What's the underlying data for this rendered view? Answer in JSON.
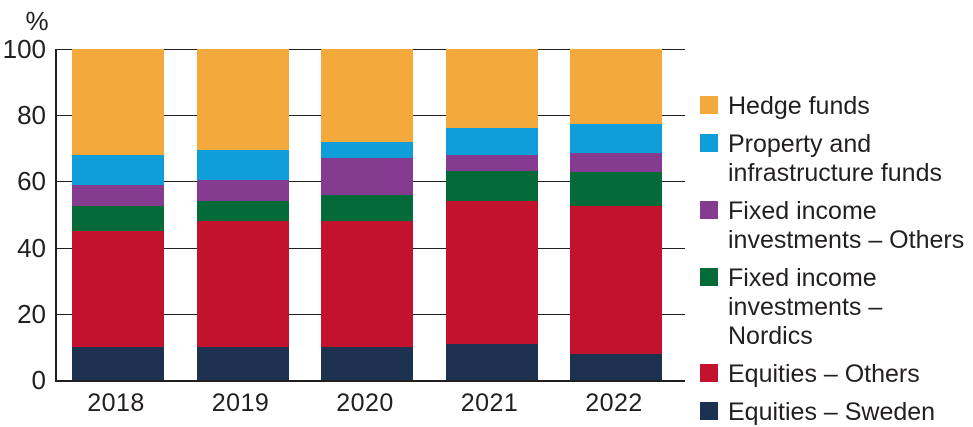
{
  "chart_data": {
    "type": "bar",
    "stacked": true,
    "percent_stacked": true,
    "title": "",
    "xlabel": "",
    "ylabel": "%",
    "ylim": [
      0,
      100
    ],
    "yticks": [
      0,
      20,
      40,
      60,
      80,
      100
    ],
    "grid": true,
    "legend_position": "right",
    "categories": [
      "2018",
      "2019",
      "2020",
      "2021",
      "2022"
    ],
    "series": [
      {
        "name": "Equities – Sweden",
        "color": "#1D3150",
        "values": [
          10,
          10,
          10,
          11,
          8
        ]
      },
      {
        "name": "Equities – Others",
        "color": "#C2122E",
        "values": [
          35,
          38,
          38,
          43,
          44.5
        ]
      },
      {
        "name": "Fixed income investments – Nordics",
        "color": "#046A38",
        "values": [
          7.5,
          6,
          8,
          9,
          10.5
        ]
      },
      {
        "name": "Fixed income investments – Others",
        "color": "#853B90",
        "values": [
          6.5,
          6.5,
          11,
          5,
          5.5
        ]
      },
      {
        "name": "Property and infrastructure funds",
        "color": "#0F9EDA",
        "values": [
          9,
          9,
          5,
          8,
          9
        ]
      },
      {
        "name": "Hedge funds",
        "color": "#F4A93C",
        "values": [
          32,
          30.5,
          28,
          24,
          22.5
        ]
      }
    ]
  },
  "legend": {
    "items": [
      {
        "label": "Hedge funds",
        "color": "#F4A93C"
      },
      {
        "label": "Property and\ninfrastructure funds",
        "color": "#0F9EDA"
      },
      {
        "label": "Fixed income\ninvestments – Others",
        "color": "#853B90"
      },
      {
        "label": "Fixed income\ninvestments – Nordics",
        "color": "#046A38"
      },
      {
        "label": "Equities – Others",
        "color": "#C2122E"
      },
      {
        "label": "Equities – Sweden",
        "color": "#1D3150"
      }
    ]
  }
}
